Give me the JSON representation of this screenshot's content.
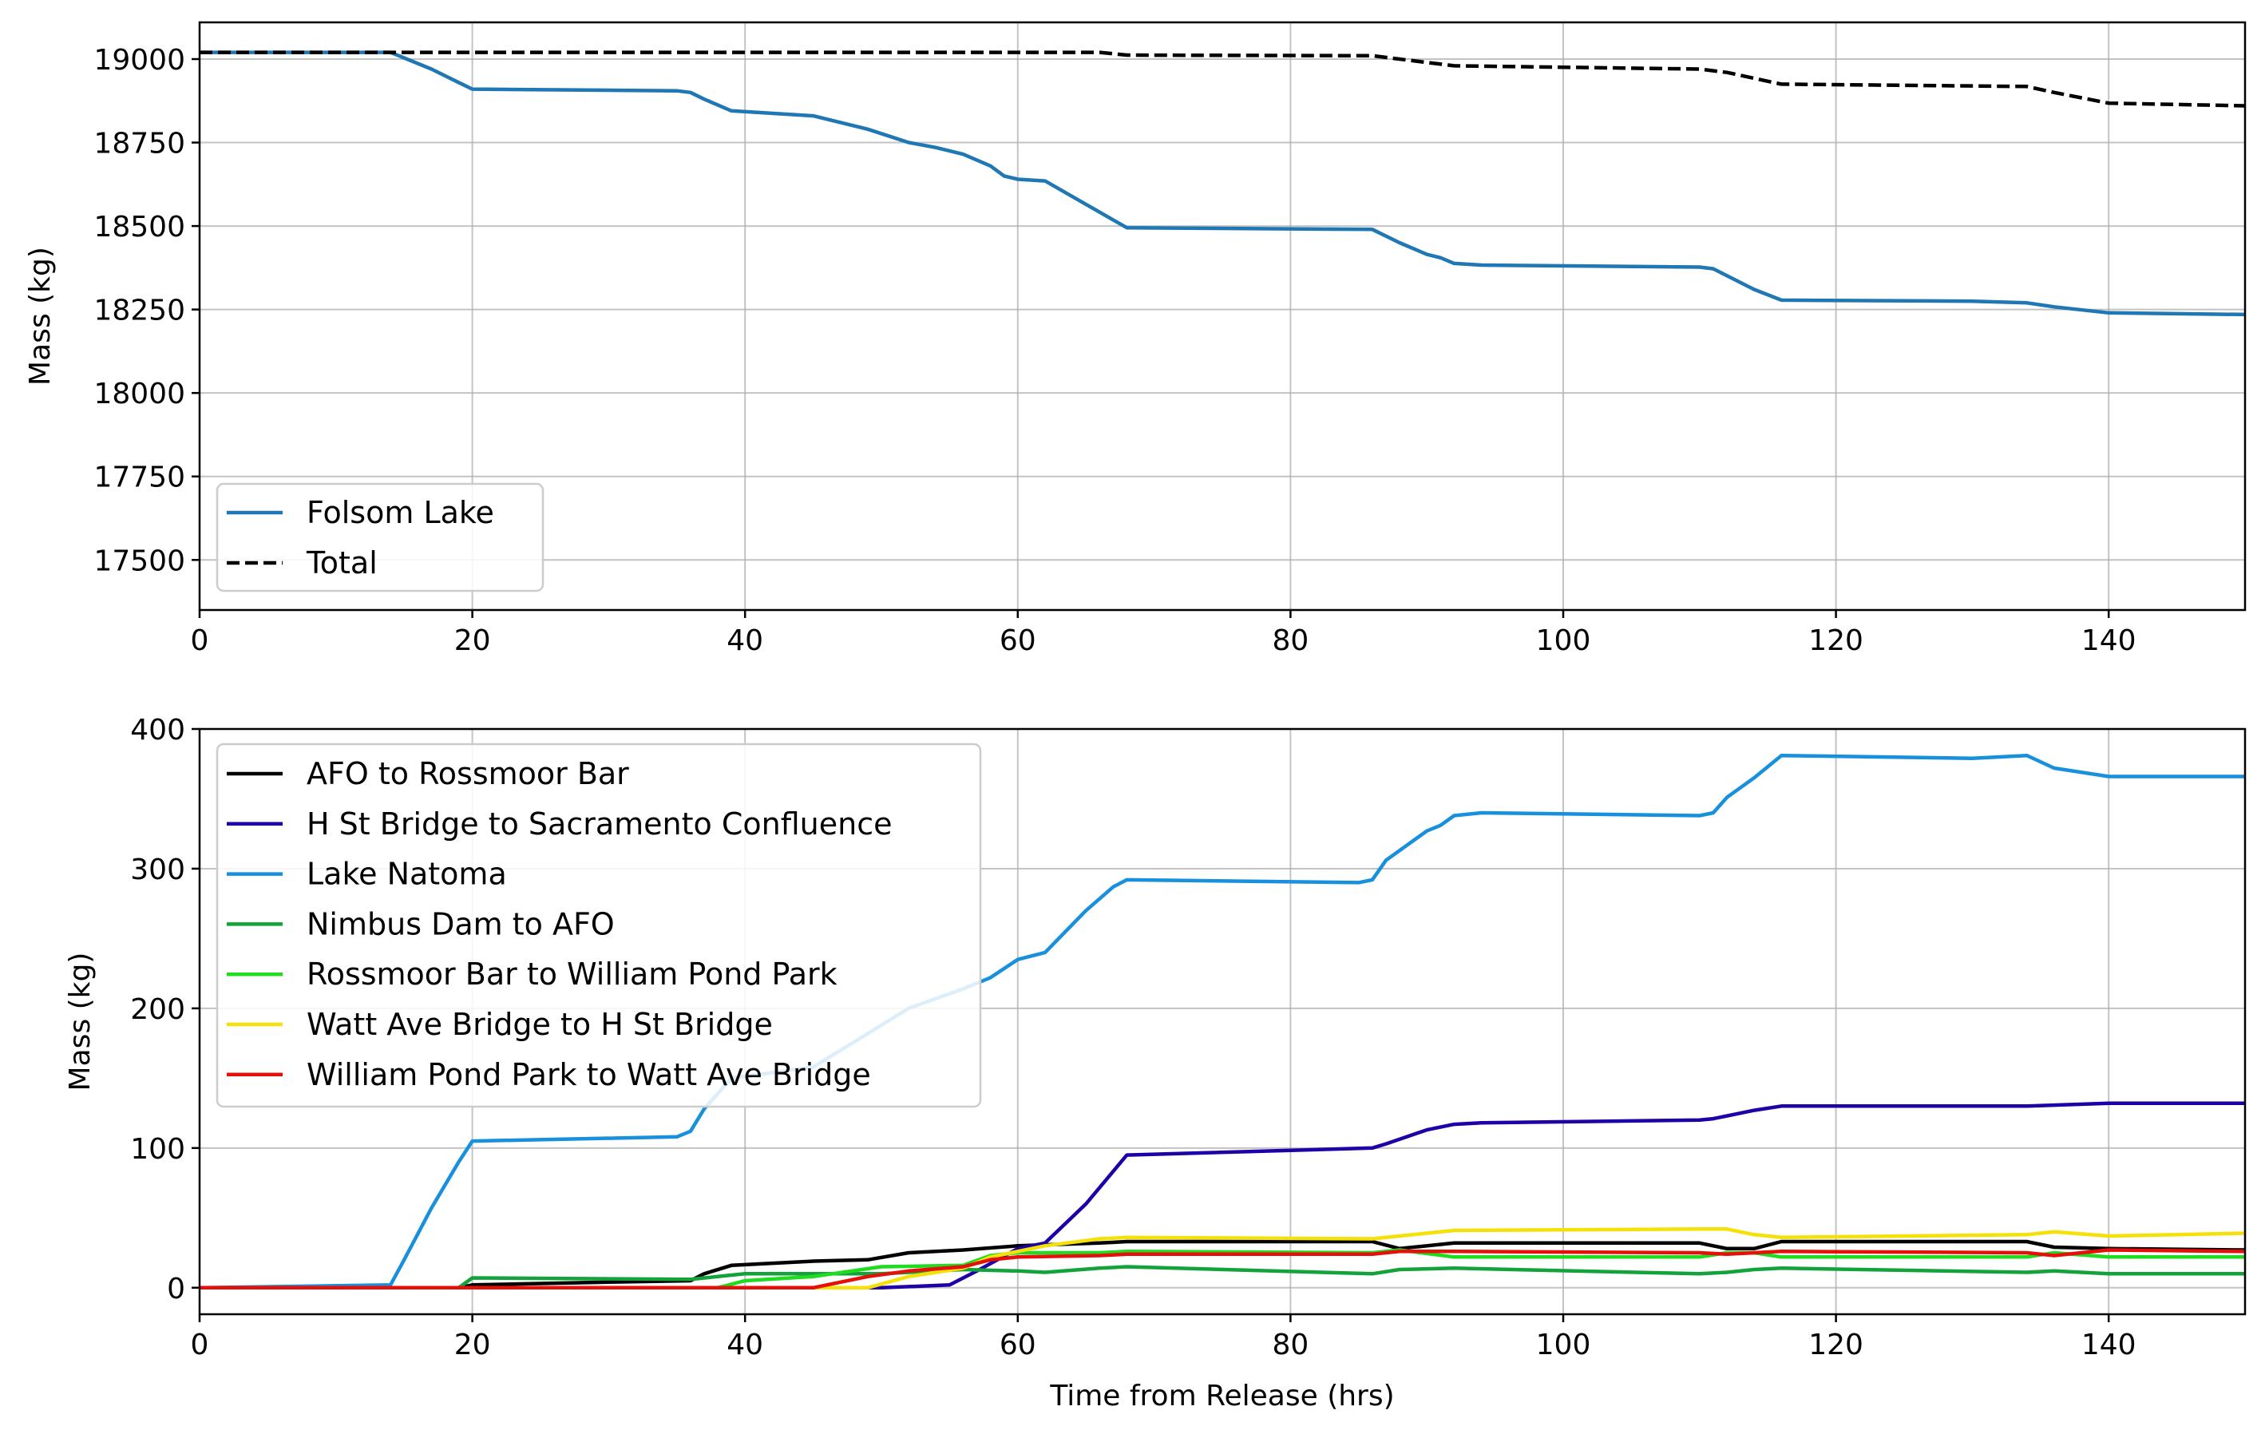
{
  "chart_data": [
    {
      "type": "line",
      "ylabel": "Mass (kg)",
      "xlim": [
        0,
        150
      ],
      "ylim": [
        17350,
        19110
      ],
      "xticks": [
        0,
        20,
        40,
        60,
        80,
        100,
        120,
        140
      ],
      "yticks": [
        17500,
        17750,
        18000,
        18250,
        18500,
        18750,
        19000
      ],
      "grid": true,
      "legend_position": "lower-left",
      "series": [
        {
          "name": "Folsom Lake",
          "color": "#1f77b4",
          "dash": "solid",
          "x": [
            0,
            14,
            17,
            19,
            20,
            35,
            36,
            37,
            39,
            45,
            49,
            52,
            54,
            56,
            58,
            59,
            60,
            62,
            65,
            68,
            86,
            88,
            90,
            91,
            92,
            94,
            110,
            111,
            114,
            116,
            130,
            134,
            136,
            140,
            150
          ],
          "y": [
            19020,
            19020,
            18970,
            18930,
            18910,
            18905,
            18900,
            18880,
            18845,
            18830,
            18790,
            18750,
            18735,
            18715,
            18680,
            18650,
            18640,
            18635,
            18565,
            18495,
            18490,
            18450,
            18415,
            18405,
            18388,
            18383,
            18377,
            18372,
            18310,
            18278,
            18275,
            18270,
            18258,
            18240,
            18235
          ]
        },
        {
          "name": "Total",
          "color": "#000000",
          "dash": "dashed",
          "x": [
            0,
            66,
            68,
            86,
            88,
            92,
            110,
            112,
            116,
            134,
            136,
            140,
            150
          ],
          "y": [
            19020,
            19020,
            19012,
            19010,
            19000,
            18980,
            18970,
            18960,
            18925,
            18918,
            18900,
            18868,
            18860
          ]
        }
      ]
    },
    {
      "type": "line",
      "xlabel": "Time from Release (hrs)",
      "ylabel": "Mass (kg)",
      "xlim": [
        0,
        150
      ],
      "ylim": [
        -19,
        400
      ],
      "xticks": [
        0,
        20,
        40,
        60,
        80,
        100,
        120,
        140
      ],
      "yticks": [
        0,
        100,
        200,
        300,
        400
      ],
      "grid": true,
      "legend_position": "upper-left",
      "series": [
        {
          "name": "AFO to Rossmoor Bar",
          "color": "#000000",
          "x": [
            0,
            19,
            20,
            30,
            36,
            37,
            39,
            45,
            49,
            52,
            56,
            60,
            66,
            68,
            86,
            88,
            92,
            110,
            112,
            114,
            116,
            134,
            136,
            140,
            150
          ],
          "y": [
            0,
            0,
            2,
            4,
            5,
            10,
            16,
            19,
            20,
            25,
            27,
            30,
            32,
            33,
            33,
            28,
            32,
            32,
            28,
            28,
            33,
            33,
            29,
            28,
            27
          ]
        },
        {
          "name": "H St Bridge to Sacramento Confluence",
          "color": "#1f00a6",
          "x": [
            0,
            50,
            55,
            57,
            60,
            62,
            65,
            68,
            86,
            87,
            90,
            92,
            94,
            110,
            111,
            114,
            116,
            134,
            140,
            150
          ],
          "y": [
            0,
            0,
            2,
            12,
            28,
            32,
            60,
            95,
            100,
            103,
            113,
            117,
            118,
            120,
            121,
            127,
            130,
            130,
            132,
            132
          ]
        },
        {
          "name": "Lake Natoma",
          "color": "#1890dc",
          "x": [
            0,
            14,
            15,
            17,
            19,
            20,
            35,
            36,
            37,
            39,
            45,
            47,
            49,
            52,
            54,
            56,
            58,
            60,
            62,
            65,
            67,
            68,
            85,
            86,
            87,
            90,
            91,
            92,
            94,
            110,
            111,
            112,
            114,
            116,
            130,
            134,
            136,
            140,
            150
          ],
          "y": [
            0,
            2,
            20,
            57,
            90,
            105,
            108,
            112,
            128,
            150,
            158,
            170,
            182,
            200,
            207,
            214,
            222,
            235,
            240,
            270,
            287,
            292,
            290,
            292,
            306,
            327,
            331,
            338,
            340,
            338,
            340,
            351,
            365,
            381,
            379,
            381,
            372,
            366,
            366
          ]
        },
        {
          "name": "Nimbus Dam to AFO",
          "color": "#14a33a",
          "x": [
            0,
            19,
            20,
            36,
            38,
            40,
            50,
            56,
            60,
            62,
            66,
            68,
            86,
            88,
            92,
            110,
            112,
            114,
            116,
            134,
            136,
            140,
            150
          ],
          "y": [
            0,
            0,
            7,
            6,
            8,
            10,
            10,
            13,
            12,
            11,
            14,
            15,
            10,
            13,
            14,
            10,
            11,
            13,
            14,
            11,
            12,
            10,
            10
          ]
        },
        {
          "name": "Rossmoor Bar to William Pond Park",
          "color": "#20dc20",
          "x": [
            0,
            38,
            40,
            45,
            50,
            56,
            58,
            60,
            66,
            68,
            86,
            88,
            92,
            110,
            112,
            114,
            116,
            134,
            136,
            140,
            150
          ],
          "y": [
            0,
            0,
            5,
            8,
            15,
            16,
            23,
            25,
            25,
            26,
            25,
            27,
            22,
            22,
            25,
            25,
            22,
            22,
            25,
            22,
            22
          ]
        },
        {
          "name": "Watt Ave Bridge to H St Bridge",
          "color": "#f5e10a",
          "x": [
            0,
            49,
            52,
            56,
            58,
            60,
            62,
            66,
            68,
            86,
            88,
            92,
            110,
            112,
            114,
            116,
            134,
            136,
            140,
            150
          ],
          "y": [
            0,
            0,
            8,
            14,
            22,
            26,
            30,
            35,
            36,
            35,
            37,
            41,
            42,
            42,
            38,
            36,
            38,
            40,
            37,
            39
          ]
        },
        {
          "name": "William Pond Park to Watt Ave Bridge",
          "color": "#e6100a",
          "x": [
            0,
            45,
            49,
            52,
            56,
            58,
            60,
            66,
            68,
            86,
            88,
            92,
            110,
            112,
            116,
            134,
            136,
            140,
            150
          ],
          "y": [
            0,
            0,
            8,
            12,
            15,
            20,
            22,
            23,
            24,
            24,
            26,
            26,
            25,
            24,
            26,
            25,
            23,
            27,
            26
          ]
        }
      ]
    }
  ]
}
